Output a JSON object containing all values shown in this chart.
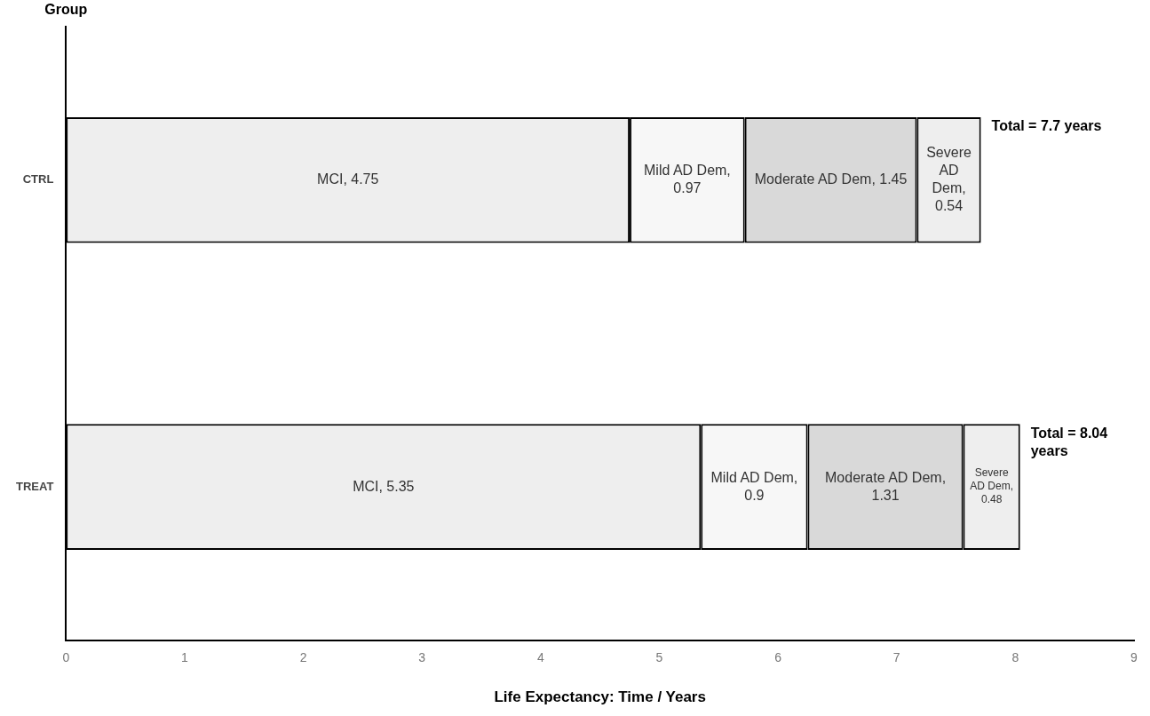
{
  "chart_data": {
    "type": "bar",
    "orientation": "horizontal",
    "stacked": true,
    "xlabel": "Life Expectancy: Time / Years",
    "ylabel": "Group",
    "categories": [
      "CTRL",
      "TREAT"
    ],
    "series": [
      {
        "color": "#eeeeee",
        "values": [
          4.75,
          5.35
        ],
        "value_labels": [
          "MCI, 4.75",
          "MCI, 5.35"
        ]
      },
      {
        "color": "#f7f7f7",
        "values": [
          0.97,
          0.9
        ],
        "value_labels": [
          "Mild AD Dem, 0.97",
          "Mild AD Dem, 0.9"
        ]
      },
      {
        "color": "#d9d9d9",
        "values": [
          1.45,
          1.31
        ],
        "value_labels": [
          "Moderate AD Dem, 1.45",
          "Moderate AD Dem, 1.31"
        ]
      },
      {
        "color": "#eeeeee",
        "values": [
          0.54,
          0.48
        ],
        "value_labels": [
          "Severe AD Dem, 0.54",
          "Severe AD Dem, 0.48"
        ]
      }
    ],
    "totals": [
      "Total = 7.7 years",
      "Total = 8.04 years"
    ],
    "xlim": [
      0,
      9
    ],
    "xticks": [
      0,
      1,
      2,
      3,
      4,
      5,
      6,
      7,
      8,
      9
    ],
    "grid": false,
    "legend": false
  }
}
